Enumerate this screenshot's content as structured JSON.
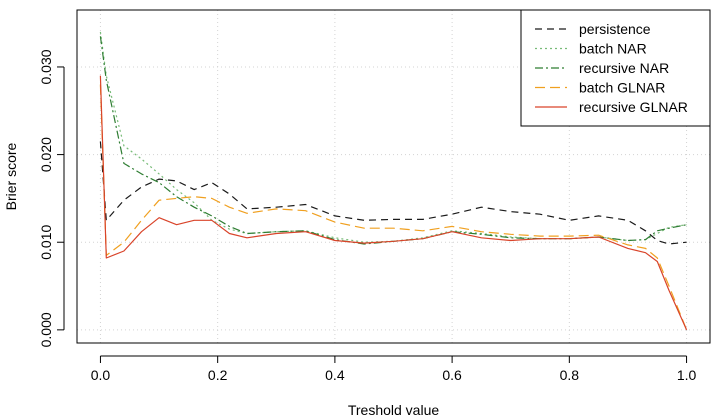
{
  "chart_data": {
    "type": "line",
    "title": "",
    "xlabel": "Treshold value",
    "ylabel": "Brier score",
    "xlim": [
      -0.04,
      1.04
    ],
    "ylim": [
      -0.0015,
      0.0365
    ],
    "grid": true,
    "legend_position": "top-right",
    "x_ticks": [
      0.0,
      0.2,
      0.4,
      0.6,
      0.8,
      1.0
    ],
    "x_tick_labels": [
      "0.0",
      "0.2",
      "0.4",
      "0.6",
      "0.8",
      "1.0"
    ],
    "y_ticks": [
      0.0,
      0.01,
      0.02,
      0.03
    ],
    "y_tick_labels": [
      "0.000",
      "0.010",
      "0.020",
      "0.030"
    ],
    "x": [
      0.0,
      0.01,
      0.04,
      0.07,
      0.1,
      0.13,
      0.16,
      0.19,
      0.22,
      0.25,
      0.3,
      0.35,
      0.4,
      0.45,
      0.5,
      0.55,
      0.6,
      0.65,
      0.7,
      0.75,
      0.8,
      0.85,
      0.9,
      0.93,
      0.95,
      0.97,
      1.0
    ],
    "series": [
      {
        "name": "persistence",
        "color": "#1a1a1a",
        "dash": "7,5",
        "values": [
          0.0215,
          0.0125,
          0.0148,
          0.0163,
          0.0172,
          0.017,
          0.016,
          0.0168,
          0.0155,
          0.0138,
          0.014,
          0.0143,
          0.013,
          0.0125,
          0.0126,
          0.0126,
          0.0132,
          0.014,
          0.0135,
          0.0132,
          0.0125,
          0.013,
          0.0125,
          0.0113,
          0.0102,
          0.0098,
          0.01
        ]
      },
      {
        "name": "batch NAR",
        "color": "#77bb77",
        "dash": "2,3",
        "values": [
          0.034,
          0.029,
          0.021,
          0.0195,
          0.0178,
          0.016,
          0.0145,
          0.0125,
          0.0115,
          0.011,
          0.0112,
          0.0113,
          0.0105,
          0.01,
          0.0101,
          0.0105,
          0.0113,
          0.011,
          0.0106,
          0.0104,
          0.0104,
          0.0106,
          0.0102,
          0.0103,
          0.011,
          0.0117,
          0.012
        ]
      },
      {
        "name": "recursive NAR",
        "color": "#2e7d32",
        "dash": "8,3,2,3",
        "values": [
          0.0335,
          0.0285,
          0.019,
          0.0178,
          0.0168,
          0.0152,
          0.014,
          0.013,
          0.0118,
          0.011,
          0.0112,
          0.0113,
          0.0103,
          0.0098,
          0.0101,
          0.0104,
          0.0112,
          0.0109,
          0.0105,
          0.0104,
          0.0104,
          0.0106,
          0.0102,
          0.0103,
          0.0113,
          0.0116,
          0.012
        ]
      },
      {
        "name": "batch GLNAR",
        "color": "#f0a020",
        "dash": "10,5",
        "values": [
          0.028,
          0.0085,
          0.01,
          0.0125,
          0.0148,
          0.015,
          0.0152,
          0.015,
          0.014,
          0.0133,
          0.0138,
          0.0136,
          0.0123,
          0.0116,
          0.0116,
          0.0113,
          0.0118,
          0.0112,
          0.0109,
          0.0107,
          0.0107,
          0.0108,
          0.0097,
          0.0093,
          0.0082,
          0.005,
          0.0
        ]
      },
      {
        "name": "recursive GLNAR",
        "color": "#d9442a",
        "dash": "",
        "values": [
          0.029,
          0.0082,
          0.009,
          0.0112,
          0.0128,
          0.012,
          0.0125,
          0.0125,
          0.011,
          0.0105,
          0.011,
          0.0112,
          0.0102,
          0.0099,
          0.0101,
          0.0104,
          0.0112,
          0.0105,
          0.0102,
          0.0104,
          0.0104,
          0.0106,
          0.0093,
          0.0088,
          0.0078,
          0.0045,
          0.0
        ]
      }
    ]
  }
}
